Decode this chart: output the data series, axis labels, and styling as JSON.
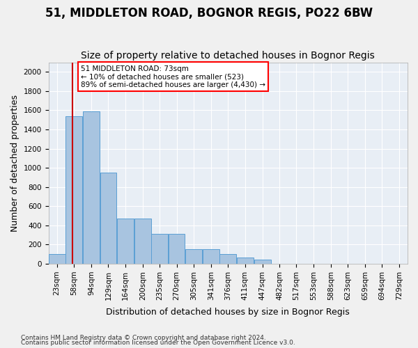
{
  "title": "51, MIDDLETON ROAD, BOGNOR REGIS, PO22 6BW",
  "subtitle": "Size of property relative to detached houses in Bognor Regis",
  "xlabel": "Distribution of detached houses by size in Bognor Regis",
  "ylabel": "Number of detached properties",
  "footnote1": "Contains HM Land Registry data © Crown copyright and database right 2024.",
  "footnote2": "Contains public sector information licensed under the Open Government Licence v3.0.",
  "bar_color": "#a8c4e0",
  "bar_edge_color": "#5a9fd4",
  "background_color": "#e8eef5",
  "grid_color": "#ffffff",
  "annotation_text": "51 MIDDLETON ROAD: 73sqm\n← 10% of detached houses are smaller (523)\n89% of semi-detached houses are larger (4,430) →",
  "vline_x": 73,
  "vline_color": "#cc0000",
  "categories": [
    "23sqm",
    "58sqm",
    "94sqm",
    "129sqm",
    "164sqm",
    "200sqm",
    "235sqm",
    "270sqm",
    "305sqm",
    "341sqm",
    "376sqm",
    "411sqm",
    "447sqm",
    "482sqm",
    "517sqm",
    "553sqm",
    "588sqm",
    "623sqm",
    "659sqm",
    "694sqm",
    "729sqm"
  ],
  "bin_edges": [
    23,
    58,
    94,
    129,
    164,
    200,
    235,
    270,
    305,
    341,
    376,
    411,
    447,
    482,
    517,
    553,
    588,
    623,
    659,
    694,
    729
  ],
  "values": [
    100,
    1540,
    1590,
    950,
    470,
    470,
    310,
    310,
    155,
    155,
    105,
    65,
    45,
    0,
    0,
    0,
    0,
    0,
    0,
    0
  ],
  "ylim": [
    0,
    2100
  ],
  "yticks": [
    0,
    200,
    400,
    600,
    800,
    1000,
    1200,
    1400,
    1600,
    1800,
    2000
  ],
  "title_fontsize": 12,
  "subtitle_fontsize": 10,
  "label_fontsize": 9,
  "tick_fontsize": 7.5
}
